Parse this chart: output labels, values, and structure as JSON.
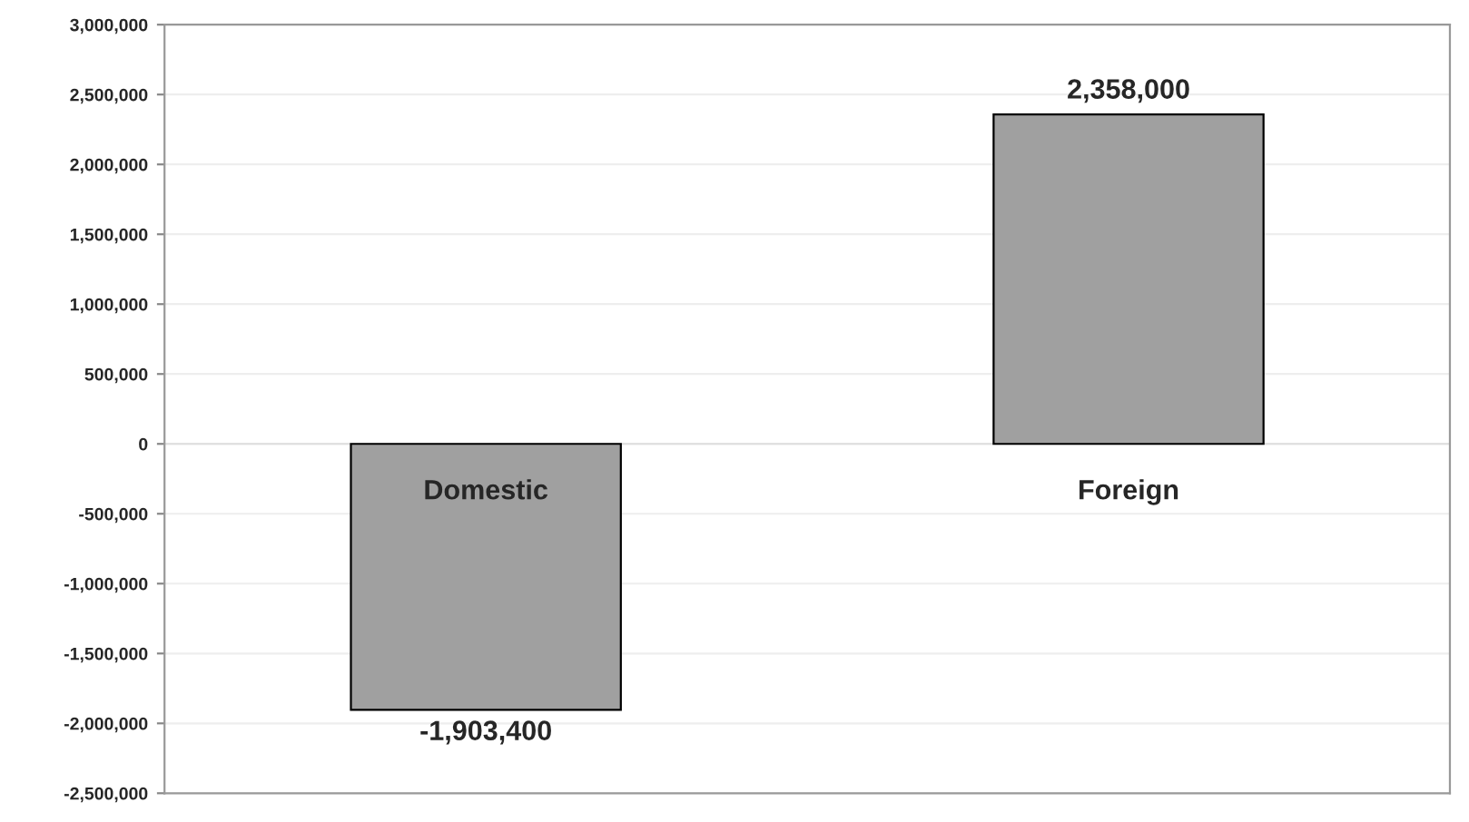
{
  "chart_data": {
    "type": "bar",
    "categories": [
      "Domestic",
      "Foreign"
    ],
    "values": [
      -1903400,
      2358000
    ],
    "color": "#a0a0a0",
    "value_labels": [
      "-1,903,400",
      "2,358,000"
    ],
    "ylim": [
      -2500000,
      3000000
    ],
    "yticks": [
      {
        "value": -2500000,
        "label": "-2,500,000"
      },
      {
        "value": -2000000,
        "label": "-2,000,000"
      },
      {
        "value": -1500000,
        "label": "-1,500,000"
      },
      {
        "value": -1000000,
        "label": "-1,000,000"
      },
      {
        "value": -500000,
        "label": "-500,000"
      },
      {
        "value": 0,
        "label": "0"
      },
      {
        "value": 500000,
        "label": "500,000"
      },
      {
        "value": 1000000,
        "label": "1,000,000"
      },
      {
        "value": 1500000,
        "label": "1,500,000"
      },
      {
        "value": 2000000,
        "label": "2,000,000"
      },
      {
        "value": 2500000,
        "label": "2,500,000"
      },
      {
        "value": 3000000,
        "label": "3,000,000"
      }
    ],
    "grid": "y",
    "legend": false
  }
}
